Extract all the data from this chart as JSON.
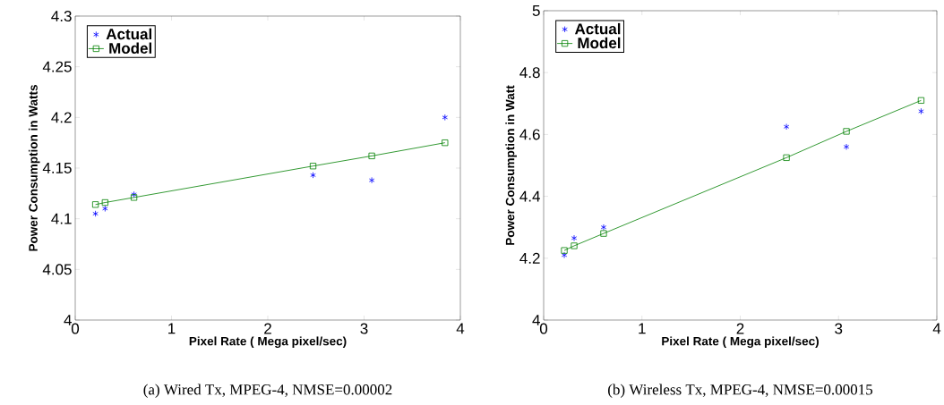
{
  "chart_data": [
    {
      "type": "line",
      "xlabel": "Pixel Rate ( Mega pixel/sec)",
      "ylabel": "Power Consumption in Watts",
      "x": [
        0.21,
        0.31,
        0.61,
        2.47,
        3.08,
        3.84
      ],
      "xlim": [
        0,
        4
      ],
      "xticks": [
        0,
        1,
        2,
        3,
        4
      ],
      "ylim": [
        4,
        4.3
      ],
      "yticks": [
        4,
        4.05,
        4.1,
        4.15,
        4.2,
        4.25,
        4.3
      ],
      "legend": "top left",
      "grid": false,
      "annotations": [
        "(a)  Wired Tx, MPEG-4, NMSE=0.00002"
      ],
      "series": [
        {
          "name": "Actual",
          "type": "scatter",
          "marker": "cross",
          "color": "#0000ff",
          "values": [
            4.105,
            4.11,
            4.124,
            4.143,
            4.138,
            4.2
          ]
        },
        {
          "name": "Model",
          "marker": "square",
          "line_style": "solid",
          "color": "#008000",
          "values": [
            4.114,
            4.116,
            4.121,
            4.152,
            4.162,
            4.175
          ]
        }
      ]
    },
    {
      "type": "line",
      "xlabel": "Pixel Rate ( Mega pixel/sec)",
      "ylabel": "Power Consumption in Watt",
      "x": [
        0.21,
        0.31,
        0.61,
        2.47,
        3.08,
        3.84
      ],
      "xlim": [
        0,
        4
      ],
      "xticks": [
        0,
        1,
        2,
        3,
        4
      ],
      "ylim": [
        4,
        5
      ],
      "yticks": [
        4,
        4.2,
        4.4,
        4.6,
        4.8,
        5
      ],
      "legend": "top left",
      "grid": false,
      "annotations": [
        "(b)  Wireless Tx, MPEG-4, NMSE=0.00015"
      ],
      "series": [
        {
          "name": "Actual",
          "type": "scatter",
          "marker": "cross",
          "color": "#0000ff",
          "values": [
            4.21,
            4.265,
            4.3,
            4.625,
            4.56,
            4.675
          ]
        },
        {
          "name": "Model",
          "marker": "square",
          "line_style": "solid",
          "color": "#008000",
          "values": [
            4.225,
            4.24,
            4.28,
            4.525,
            4.61,
            4.71
          ]
        }
      ]
    }
  ]
}
